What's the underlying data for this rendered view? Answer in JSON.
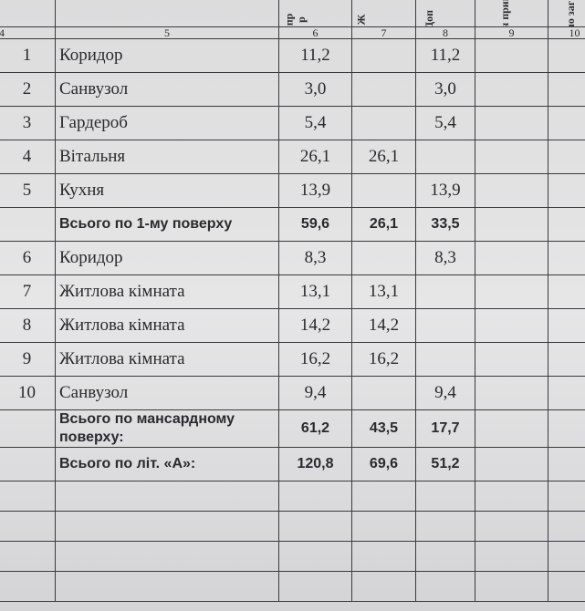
{
  "header_fragments": [
    "пр",
    "р",
    "Ж",
    "Доп",
    "Літн прим",
    "Пло заг"
  ],
  "column_numbers": [
    "4",
    "5",
    "6",
    "7",
    "8",
    "9",
    "10"
  ],
  "rows": [
    {
      "n": "1",
      "name": "Коридор",
      "total": "11,2",
      "living": "",
      "aux": "11,2"
    },
    {
      "n": "2",
      "name": "Санвузол",
      "total": "3,0",
      "living": "",
      "aux": "3,0"
    },
    {
      "n": "3",
      "name": "Гардероб",
      "total": "5,4",
      "living": "",
      "aux": "5,4"
    },
    {
      "n": "4",
      "name": "Вітальня",
      "total": "26,1",
      "living": "26,1",
      "aux": ""
    },
    {
      "n": "5",
      "name": "Кухня",
      "total": "13,9",
      "living": "",
      "aux": "13,9"
    },
    {
      "n": "",
      "name": "Всього по 1-му поверху",
      "total": "59,6",
      "living": "26,1",
      "aux": "33,5",
      "bold": true
    },
    {
      "n": "6",
      "name": "Коридор",
      "total": "8,3",
      "living": "",
      "aux": "8,3"
    },
    {
      "n": "7",
      "name": "Житлова кімната",
      "total": "13,1",
      "living": "13,1",
      "aux": ""
    },
    {
      "n": "8",
      "name": "Житлова кімната",
      "total": "14,2",
      "living": "14,2",
      "aux": ""
    },
    {
      "n": "9",
      "name": "Житлова кімната",
      "total": "16,2",
      "living": "16,2",
      "aux": ""
    },
    {
      "n": "10",
      "name": "Санвузол",
      "total": "9,4",
      "living": "",
      "aux": "9,4"
    },
    {
      "n": "",
      "name": "Всього по мансардному поверху:",
      "total": "61,2",
      "living": "43,5",
      "aux": "17,7",
      "bold": true
    },
    {
      "n": "",
      "name": "Всього по  літ. «А»:",
      "total": "120,8",
      "living": "69,6",
      "aux": "51,2",
      "bold": true
    }
  ]
}
